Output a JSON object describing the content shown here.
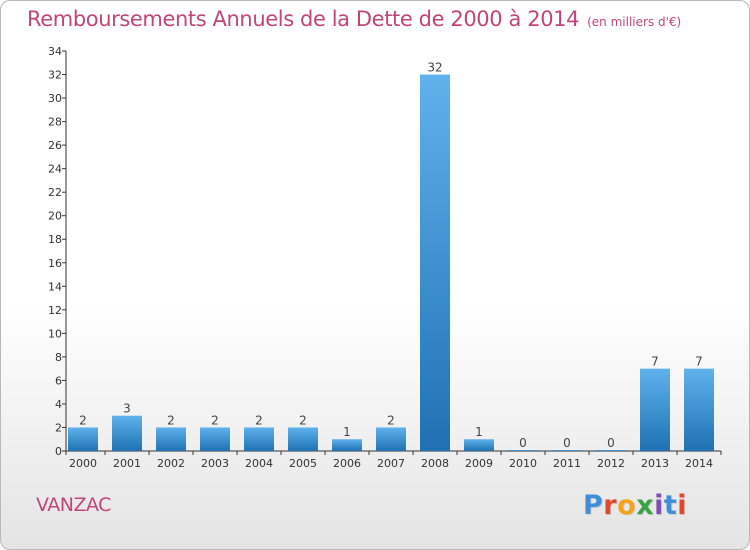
{
  "header": {
    "title": "Remboursements Annuels de la Dette de 2000 à 2014",
    "subtitle": "(en milliers d'€)"
  },
  "footer": {
    "commune": "VANZAC",
    "logo": "Proxiti",
    "logo_colors": [
      "#3f8fd6",
      "#e0472b",
      "#f2a51a",
      "#3aa444",
      "#7d4fb0",
      "#3f8fd6",
      "#e0472b"
    ]
  },
  "colors": {
    "title": "#c2457a",
    "bar_top": "#5fb2ec",
    "bar_bottom": "#1f71b3",
    "axis": "#333333"
  },
  "chart_data": {
    "type": "bar",
    "title": "Remboursements Annuels de la Dette de 2000 à 2014",
    "subtitle": "(en milliers d'€)",
    "categories": [
      "2000",
      "2001",
      "2002",
      "2003",
      "2004",
      "2005",
      "2006",
      "2007",
      "2008",
      "2009",
      "2010",
      "2011",
      "2012",
      "2013",
      "2014"
    ],
    "values": [
      2,
      3,
      2,
      2,
      2,
      2,
      1,
      2,
      32,
      1,
      0,
      0,
      0,
      7,
      7
    ],
    "ylim": [
      0,
      34
    ],
    "yticks": [
      0,
      2,
      4,
      6,
      8,
      10,
      12,
      14,
      16,
      18,
      20,
      22,
      24,
      26,
      28,
      30,
      32,
      34
    ],
    "xlabel": "",
    "ylabel": "",
    "grid": false,
    "data_labels": true
  }
}
